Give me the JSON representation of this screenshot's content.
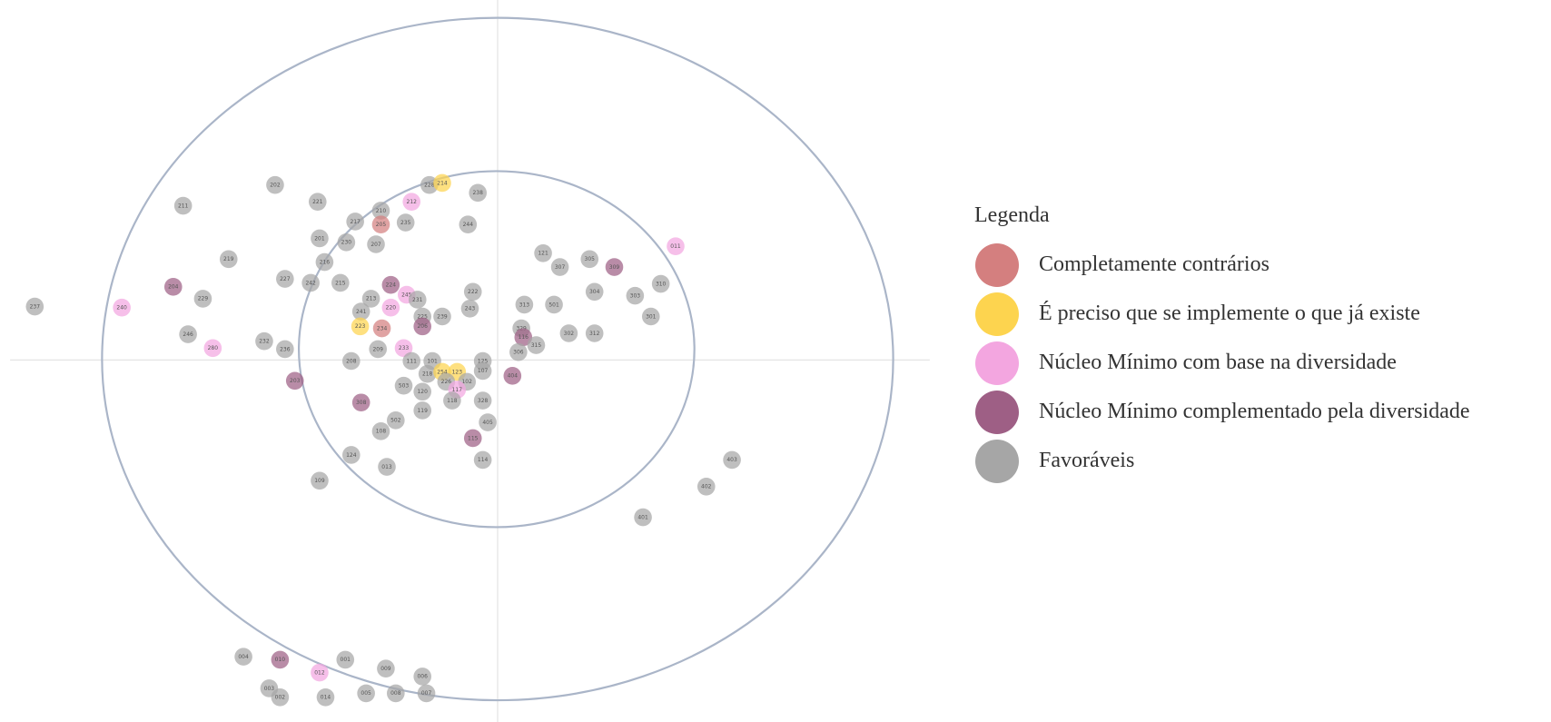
{
  "legend": {
    "title": "Legenda",
    "items": [
      {
        "label": "Completamente contrários",
        "color": "#d47f7f"
      },
      {
        "label": "É preciso que se implemente o que já existe",
        "color": "#fdd44f"
      },
      {
        "label": "Núcleo Mínimo com base na diversidade",
        "color": "#f3a6e0"
      },
      {
        "label": "Núcleo Mínimo complementado pela diversidade",
        "color": "#9e5f85"
      },
      {
        "label": "Favoráveis",
        "color": "#a6a6a6"
      }
    ]
  },
  "nodes": [
    {
      "label": "237",
      "color": "#a6a6a6"
    },
    {
      "label": "240",
      "color": "#f3a6e0"
    },
    {
      "label": "204",
      "color": "#9e5f85"
    },
    {
      "label": "229",
      "color": "#a6a6a6"
    },
    {
      "label": "246",
      "color": "#a6a6a6"
    },
    {
      "label": "280",
      "color": "#f3a6e0"
    },
    {
      "label": "211",
      "color": "#a6a6a6"
    },
    {
      "label": "202",
      "color": "#a6a6a6"
    },
    {
      "label": "219",
      "color": "#a6a6a6"
    },
    {
      "label": "221",
      "color": "#a6a6a6"
    },
    {
      "label": "227",
      "color": "#a6a6a6"
    },
    {
      "label": "242",
      "color": "#a6a6a6"
    },
    {
      "label": "232",
      "color": "#a6a6a6"
    },
    {
      "label": "236",
      "color": "#a6a6a6"
    },
    {
      "label": "203",
      "color": "#9e5f85"
    },
    {
      "label": "201",
      "color": "#a6a6a6"
    },
    {
      "label": "216",
      "color": "#a6a6a6"
    },
    {
      "label": "215",
      "color": "#a6a6a6"
    },
    {
      "label": "217",
      "color": "#a6a6a6"
    },
    {
      "label": "230",
      "color": "#a6a6a6"
    },
    {
      "label": "210",
      "color": "#a6a6a6"
    },
    {
      "label": "205",
      "color": "#d47f7f"
    },
    {
      "label": "235",
      "color": "#a6a6a6"
    },
    {
      "label": "207",
      "color": "#a6a6a6"
    },
    {
      "label": "212",
      "color": "#f3a6e0"
    },
    {
      "label": "228",
      "color": "#a6a6a6"
    },
    {
      "label": "214",
      "color": "#fdd44f"
    },
    {
      "label": "238",
      "color": "#a6a6a6"
    },
    {
      "label": "244",
      "color": "#a6a6a6"
    },
    {
      "label": "213",
      "color": "#a6a6a6"
    },
    {
      "label": "241",
      "color": "#a6a6a6"
    },
    {
      "label": "223",
      "color": "#fdd44f"
    },
    {
      "label": "234",
      "color": "#d47f7f"
    },
    {
      "label": "224",
      "color": "#9e5f85"
    },
    {
      "label": "245",
      "color": "#f3a6e0"
    },
    {
      "label": "231",
      "color": "#a6a6a6"
    },
    {
      "label": "220",
      "color": "#f3a6e0"
    },
    {
      "label": "225",
      "color": "#a6a6a6"
    },
    {
      "label": "206",
      "color": "#9e5f85"
    },
    {
      "label": "239",
      "color": "#a6a6a6"
    },
    {
      "label": "222",
      "color": "#a6a6a6"
    },
    {
      "label": "243",
      "color": "#a6a6a6"
    },
    {
      "label": "208",
      "color": "#a6a6a6"
    },
    {
      "label": "209",
      "color": "#a6a6a6"
    },
    {
      "label": "233",
      "color": "#f3a6e0"
    },
    {
      "label": "111",
      "color": "#a6a6a6"
    },
    {
      "label": "101",
      "color": "#a6a6a6"
    },
    {
      "label": "218",
      "color": "#a6a6a6"
    },
    {
      "label": "254",
      "color": "#fdd44f"
    },
    {
      "label": "123",
      "color": "#fdd44f"
    },
    {
      "label": "125",
      "color": "#a6a6a6"
    },
    {
      "label": "107",
      "color": "#a6a6a6"
    },
    {
      "label": "102",
      "color": "#a6a6a6"
    },
    {
      "label": "226",
      "color": "#a6a6a6"
    },
    {
      "label": "117",
      "color": "#f3a6e0"
    },
    {
      "label": "503",
      "color": "#a6a6a6"
    },
    {
      "label": "120",
      "color": "#a6a6a6"
    },
    {
      "label": "118",
      "color": "#a6a6a6"
    },
    {
      "label": "119",
      "color": "#a6a6a6"
    },
    {
      "label": "328",
      "color": "#a6a6a6"
    },
    {
      "label": "308",
      "color": "#9e5f85"
    },
    {
      "label": "502",
      "color": "#a6a6a6"
    },
    {
      "label": "108",
      "color": "#a6a6a6"
    },
    {
      "label": "405",
      "color": "#a6a6a6"
    },
    {
      "label": "115",
      "color": "#9e5f85"
    },
    {
      "label": "114",
      "color": "#a6a6a6"
    },
    {
      "label": "124",
      "color": "#a6a6a6"
    },
    {
      "label": "013",
      "color": "#a6a6a6"
    },
    {
      "label": "109",
      "color": "#a6a6a6"
    },
    {
      "label": "313",
      "color": "#a6a6a6"
    },
    {
      "label": "121",
      "color": "#a6a6a6"
    },
    {
      "label": "307",
      "color": "#a6a6a6"
    },
    {
      "label": "305",
      "color": "#a6a6a6"
    },
    {
      "label": "309",
      "color": "#9e5f85"
    },
    {
      "label": "501",
      "color": "#a6a6a6"
    },
    {
      "label": "304",
      "color": "#a6a6a6"
    },
    {
      "label": "303",
      "color": "#a6a6a6"
    },
    {
      "label": "310",
      "color": "#a6a6a6"
    },
    {
      "label": "301",
      "color": "#a6a6a6"
    },
    {
      "label": "011",
      "color": "#f3a6e0"
    },
    {
      "label": "302",
      "color": "#a6a6a6"
    },
    {
      "label": "312",
      "color": "#a6a6a6"
    },
    {
      "label": "329",
      "color": "#a6a6a6"
    },
    {
      "label": "116",
      "color": "#9e5f85"
    },
    {
      "label": "315",
      "color": "#a6a6a6"
    },
    {
      "label": "306",
      "color": "#a6a6a6"
    },
    {
      "label": "404",
      "color": "#9e5f85"
    },
    {
      "label": "403",
      "color": "#a6a6a6"
    },
    {
      "label": "402",
      "color": "#a6a6a6"
    },
    {
      "label": "401",
      "color": "#a6a6a6"
    },
    {
      "label": "004",
      "color": "#a6a6a6"
    },
    {
      "label": "010",
      "color": "#9e5f85"
    },
    {
      "label": "001",
      "color": "#a6a6a6"
    },
    {
      "label": "009",
      "color": "#a6a6a6"
    },
    {
      "label": "012",
      "color": "#f3a6e0"
    },
    {
      "label": "006",
      "color": "#a6a6a6"
    },
    {
      "label": "003",
      "color": "#a6a6a6"
    },
    {
      "label": "002",
      "color": "#a6a6a6"
    },
    {
      "label": "014",
      "color": "#a6a6a6"
    },
    {
      "label": "005",
      "color": "#a6a6a6"
    },
    {
      "label": "008",
      "color": "#a6a6a6"
    },
    {
      "label": "007",
      "color": "#a6a6a6"
    }
  ]
}
